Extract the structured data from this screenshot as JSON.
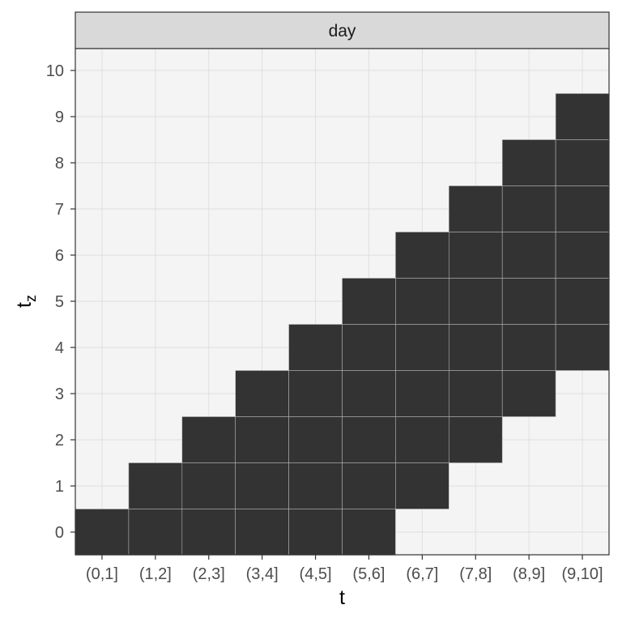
{
  "chart_data": {
    "type": "heatmap",
    "facet": "day",
    "xlabel": "t",
    "ylabel_main": "t",
    "ylabel_sub": "z",
    "x_categories": [
      "(0,1]",
      "(1,2]",
      "(2,3]",
      "(3,4]",
      "(4,5]",
      "(5,6]",
      "(6,7]",
      "(7,8]",
      "(8,9]",
      "(9,10]"
    ],
    "y_ticks": [
      0,
      1,
      2,
      3,
      4,
      5,
      6,
      7,
      8,
      9,
      10
    ],
    "grid": true,
    "legend": "none",
    "colors": {
      "filled": "#333333",
      "panel_bg": "#f4f4f4",
      "grid": "#dedede",
      "strip_bg": "#d9d9d9",
      "border": "#333333"
    },
    "filled_cells": [
      {
        "x": "(0,1]",
        "y": [
          0,
          0
        ]
      },
      {
        "x": "(1,2]",
        "y": [
          0,
          1
        ]
      },
      {
        "x": "(2,3]",
        "y": [
          0,
          2
        ]
      },
      {
        "x": "(3,4]",
        "y": [
          0,
          3
        ]
      },
      {
        "x": "(4,5]",
        "y": [
          0,
          4
        ]
      },
      {
        "x": "(5,6]",
        "y": [
          0,
          5
        ]
      },
      {
        "x": "(6,7]",
        "y": [
          1,
          6
        ]
      },
      {
        "x": "(7,8]",
        "y": [
          2,
          7
        ]
      },
      {
        "x": "(8,9]",
        "y": [
          3,
          8
        ]
      },
      {
        "x": "(9,10]",
        "y": [
          4,
          9
        ]
      }
    ]
  }
}
